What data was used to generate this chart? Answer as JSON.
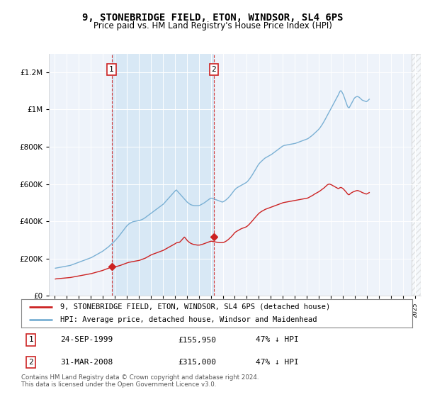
{
  "title": "9, STONEBRIDGE FIELD, ETON, WINDSOR, SL4 6PS",
  "subtitle": "Price paid vs. HM Land Registry's House Price Index (HPI)",
  "background_color": "#ffffff",
  "plot_bg_color": "#f0f4fa",
  "shaded_region_color": "#dce8f5",
  "legend_line1": "9, STONEBRIDGE FIELD, ETON, WINDSOR, SL4 6PS (detached house)",
  "legend_line2": "HPI: Average price, detached house, Windsor and Maidenhead",
  "footer": "Contains HM Land Registry data © Crown copyright and database right 2024.\nThis data is licensed under the Open Government Licence v3.0.",
  "purchase1_date": "24-SEP-1999",
  "purchase1_price": "£155,950",
  "purchase1_hpi": "47% ↓ HPI",
  "purchase2_date": "31-MAR-2008",
  "purchase2_price": "£315,000",
  "purchase2_hpi": "47% ↓ HPI",
  "purchase1_x": 1999.73,
  "purchase1_y": 155950,
  "purchase2_x": 2008.25,
  "purchase2_y": 315000,
  "hpi_color": "#7ab0d4",
  "price_color": "#cc2222",
  "vline_color": "#cc2222",
  "ylim": [
    0,
    1300000
  ],
  "xlim": [
    1994.5,
    2025.5
  ],
  "hpi_data": [
    148000,
    149000,
    150000,
    151000,
    152000,
    153000,
    154000,
    155000,
    156000,
    157000,
    158000,
    159000,
    160000,
    161000,
    162000,
    163000,
    165000,
    167000,
    169000,
    171000,
    173000,
    175000,
    177000,
    179000,
    181000,
    183000,
    185000,
    187000,
    189000,
    191000,
    193000,
    195000,
    197000,
    199000,
    201000,
    203000,
    205000,
    208000,
    211000,
    214000,
    217000,
    220000,
    223000,
    226000,
    229000,
    232000,
    235000,
    238000,
    242000,
    246000,
    250000,
    254000,
    258000,
    262000,
    267000,
    272000,
    277000,
    282000,
    287000,
    292000,
    298000,
    304000,
    310000,
    316000,
    323000,
    330000,
    337000,
    344000,
    351000,
    358000,
    365000,
    372000,
    378000,
    383000,
    387000,
    390000,
    393000,
    396000,
    398000,
    399000,
    400000,
    401000,
    402000,
    403000,
    404000,
    406000,
    408000,
    410000,
    413000,
    416000,
    420000,
    424000,
    428000,
    432000,
    436000,
    440000,
    444000,
    448000,
    452000,
    456000,
    460000,
    464000,
    468000,
    472000,
    476000,
    480000,
    484000,
    488000,
    492000,
    498000,
    504000,
    510000,
    516000,
    522000,
    528000,
    534000,
    540000,
    546000,
    552000,
    558000,
    564000,
    568000,
    562000,
    556000,
    550000,
    544000,
    538000,
    532000,
    526000,
    520000,
    514000,
    508000,
    502000,
    498000,
    494000,
    490000,
    488000,
    486000,
    485000,
    484000,
    484000,
    484000,
    484000,
    484000,
    485000,
    487000,
    490000,
    493000,
    496000,
    499000,
    503000,
    507000,
    511000,
    515000,
    519000,
    523000,
    524000,
    523000,
    521000,
    519000,
    517000,
    515000,
    513000,
    511000,
    509000,
    507000,
    505000,
    503000,
    505000,
    508000,
    512000,
    516000,
    521000,
    526000,
    532000,
    538000,
    545000,
    552000,
    559000,
    566000,
    572000,
    577000,
    581000,
    584000,
    587000,
    590000,
    593000,
    596000,
    599000,
    602000,
    605000,
    608000,
    613000,
    619000,
    626000,
    633000,
    641000,
    649000,
    658000,
    667000,
    676000,
    685000,
    694000,
    703000,
    710000,
    716000,
    721000,
    726000,
    731000,
    736000,
    740000,
    743000,
    746000,
    749000,
    752000,
    755000,
    758000,
    762000,
    766000,
    770000,
    774000,
    778000,
    782000,
    786000,
    790000,
    794000,
    798000,
    802000,
    805000,
    807000,
    808000,
    809000,
    810000,
    811000,
    812000,
    813000,
    814000,
    815000,
    816000,
    817000,
    818000,
    820000,
    822000,
    824000,
    826000,
    828000,
    830000,
    832000,
    834000,
    836000,
    838000,
    840000,
    842000,
    845000,
    849000,
    853000,
    857000,
    861000,
    866000,
    871000,
    876000,
    881000,
    886000,
    891000,
    897000,
    904000,
    912000,
    920000,
    929000,
    938000,
    948000,
    958000,
    968000,
    978000,
    988000,
    998000,
    1008000,
    1018000,
    1028000,
    1038000,
    1048000,
    1058000,
    1068000,
    1078000,
    1090000,
    1100000,
    1100000,
    1090000,
    1080000,
    1065000,
    1050000,
    1035000,
    1020000,
    1010000,
    1010000,
    1020000,
    1030000,
    1040000,
    1050000,
    1060000,
    1065000,
    1068000,
    1070000,
    1068000,
    1065000,
    1060000,
    1055000,
    1050000,
    1048000,
    1046000,
    1044000,
    1042000,
    1045000,
    1050000,
    1055000
  ],
  "price_data": [
    90000,
    91000,
    91500,
    92000,
    92500,
    93000,
    93500,
    94000,
    94500,
    95000,
    95500,
    96000,
    96500,
    97000,
    97500,
    98000,
    99000,
    100000,
    101000,
    102000,
    103000,
    104000,
    105000,
    106000,
    107000,
    108000,
    109000,
    110000,
    111000,
    112000,
    113000,
    114000,
    115000,
    116000,
    117000,
    118000,
    119000,
    120500,
    122000,
    123500,
    125000,
    126500,
    128000,
    129500,
    131000,
    132500,
    134000,
    135500,
    137500,
    139500,
    141500,
    143500,
    145500,
    147500,
    149500,
    151500,
    153500,
    154500,
    155000,
    155500,
    155950,
    157000,
    158500,
    160000,
    161500,
    163000,
    165000,
    167000,
    169000,
    171000,
    173000,
    175000,
    177000,
    178500,
    180000,
    181000,
    182000,
    183000,
    184000,
    185000,
    186000,
    187000,
    188000,
    189000,
    190000,
    192000,
    194000,
    196000,
    198000,
    200000,
    202000,
    205000,
    208000,
    211000,
    214000,
    217000,
    220000,
    222000,
    224000,
    226000,
    228000,
    230000,
    232000,
    234000,
    236000,
    238000,
    240000,
    242000,
    244000,
    247000,
    250000,
    253000,
    256000,
    259000,
    262000,
    265000,
    268000,
    271000,
    274000,
    277000,
    280000,
    284000,
    285000,
    286000,
    287000,
    291000,
    297000,
    303000,
    309000,
    315000,
    310000,
    303000,
    296000,
    291000,
    287000,
    283000,
    280000,
    278000,
    276000,
    275000,
    274000,
    273000,
    272000,
    272000,
    272000,
    273000,
    275000,
    276000,
    278000,
    280000,
    282000,
    284000,
    286000,
    288000,
    290000,
    292000,
    293000,
    292000,
    291000,
    290000,
    289000,
    288000,
    287000,
    286000,
    285000,
    285000,
    285000,
    285000,
    286000,
    288000,
    291000,
    294000,
    298000,
    302000,
    307000,
    312000,
    317000,
    323000,
    329000,
    336000,
    341000,
    345000,
    348000,
    351000,
    354000,
    357000,
    360000,
    362000,
    364000,
    366000,
    368000,
    370000,
    374000,
    379000,
    384000,
    390000,
    396000,
    402000,
    408000,
    415000,
    421000,
    427000,
    433000,
    439000,
    444000,
    448000,
    452000,
    455000,
    458000,
    461000,
    464000,
    466000,
    468000,
    470000,
    472000,
    474000,
    476000,
    478000,
    480000,
    482000,
    484000,
    486000,
    488000,
    490000,
    492000,
    494000,
    496000,
    498000,
    500000,
    501000,
    502000,
    503000,
    504000,
    505000,
    506000,
    507000,
    508000,
    509000,
    510000,
    511000,
    512000,
    513000,
    514000,
    515000,
    516000,
    517000,
    518000,
    519000,
    520000,
    521000,
    522000,
    523000,
    524000,
    526000,
    529000,
    532000,
    535000,
    538000,
    541000,
    545000,
    548000,
    551000,
    554000,
    557000,
    560000,
    564000,
    568000,
    572000,
    576000,
    580000,
    585000,
    590000,
    595000,
    598000,
    600000,
    598000,
    596000,
    593000,
    590000,
    587000,
    584000,
    581000,
    578000,
    575000,
    578000,
    581000,
    581000,
    578000,
    574000,
    568000,
    562000,
    556000,
    549000,
    543000,
    543000,
    548000,
    552000,
    555000,
    558000,
    560000,
    562000,
    564000,
    565000,
    564000,
    562000,
    560000,
    557000,
    554000,
    552000,
    550000,
    548000,
    546000,
    548000,
    551000,
    554000
  ]
}
